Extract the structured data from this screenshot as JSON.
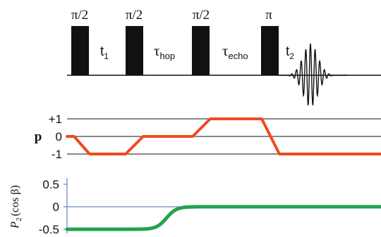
{
  "pulse_sequence": {
    "pulses": [
      {
        "flip_label": "π/2"
      },
      {
        "flip_label": "π/2"
      },
      {
        "flip_label": "π/2"
      },
      {
        "flip_label": "π"
      }
    ],
    "delays": [
      {
        "symbol": "t",
        "subscript": "1"
      },
      {
        "symbol": "τ",
        "subscript": "hop"
      },
      {
        "symbol": "τ",
        "subscript": "echo"
      },
      {
        "symbol": "t",
        "subscript": "2"
      }
    ],
    "pulse_color": "#111111",
    "line_color": "#111111"
  },
  "coherence_pathway": {
    "axis_label": "p",
    "levels": [
      "+1",
      "0",
      "-1"
    ],
    "segments": [
      0,
      -1,
      -1,
      0,
      0,
      1,
      1,
      -1,
      -1
    ],
    "path_color": "#f04a22"
  },
  "p2_plot": {
    "ylabel_main": "P",
    "ylabel_sub": "2",
    "ylabel_arg": "(cos β)",
    "ticks": [
      "0.5",
      "0",
      "-0.5"
    ],
    "tick_values": [
      0.5,
      0,
      -0.5
    ],
    "start_value": -0.5,
    "end_value": 0,
    "curve_color": "#22a34a",
    "zero_line_color": "#4a66c8"
  }
}
